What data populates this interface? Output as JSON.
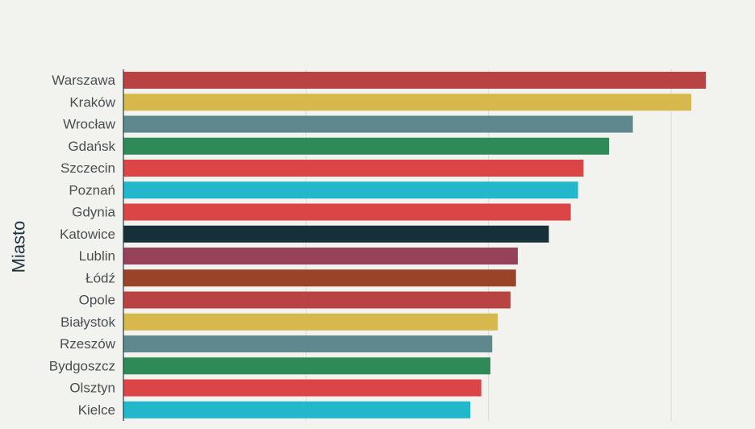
{
  "chart_data": {
    "type": "bar",
    "orientation": "horizontal",
    "title": "",
    "xlabel": "",
    "ylabel": "Miasto",
    "categories": [
      "Warszawa",
      "Kraków",
      "Wrocław",
      "Gdańsk",
      "Szczecin",
      "Poznań",
      "Gdynia",
      "Katowice",
      "Lublin",
      "Łódź",
      "Opole",
      "Białystok",
      "Rzeszów",
      "Bydgoszcz",
      "Olsztyn",
      "Kielce"
    ],
    "values": [
      31.9,
      31.1,
      27.9,
      26.6,
      25.2,
      24.9,
      24.5,
      23.3,
      21.6,
      21.5,
      21.2,
      20.5,
      20.2,
      20.1,
      19.6,
      19.0
    ],
    "colors": [
      "#b94342",
      "#d6b84d",
      "#5e888e",
      "#2e8b57",
      "#dc4545",
      "#22b7cb",
      "#dc4545",
      "#163039",
      "#984259",
      "#9a4328",
      "#b94342",
      "#d6b84d",
      "#5e888e",
      "#2e8b57",
      "#dc4545",
      "#22b7cb"
    ],
    "xlim": [
      0,
      33
    ],
    "grid": true,
    "legend": "none"
  }
}
